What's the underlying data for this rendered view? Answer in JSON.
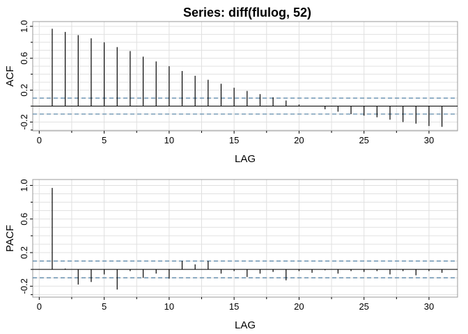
{
  "title": "Series:  diff(flulog, 52)",
  "colors": {
    "spike": "#000000",
    "bound": "#4f7fa3",
    "grid": "#e0e0e0",
    "frame": "#999999"
  },
  "chart_data": [
    {
      "type": "bar",
      "panel": "acf",
      "xlabel": "LAG",
      "ylabel": "ACF",
      "xlim": [
        -0.5,
        32.2
      ],
      "ylim": [
        -0.31,
        1.06
      ],
      "xticks": [
        0,
        5,
        10,
        15,
        20,
        25,
        30
      ],
      "yticks": [
        "-0.2",
        "0.2",
        "0.6",
        "1.0"
      ],
      "grid": true,
      "confidence_bound": 0.1,
      "x": [
        1,
        2,
        3,
        4,
        5,
        6,
        7,
        8,
        9,
        10,
        11,
        12,
        13,
        14,
        15,
        16,
        17,
        18,
        19,
        20,
        21,
        22,
        23,
        24,
        25,
        26,
        27,
        28,
        29,
        30,
        31
      ],
      "values": [
        0.97,
        0.93,
        0.89,
        0.85,
        0.8,
        0.74,
        0.69,
        0.62,
        0.56,
        0.5,
        0.44,
        0.38,
        0.33,
        0.28,
        0.23,
        0.19,
        0.15,
        0.11,
        0.07,
        0.02,
        0.0,
        -0.04,
        -0.07,
        -0.1,
        -0.12,
        -0.14,
        -0.17,
        -0.2,
        -0.22,
        -0.25,
        -0.26
      ]
    },
    {
      "type": "bar",
      "panel": "pacf",
      "xlabel": "LAG",
      "ylabel": "PACF",
      "xlim": [
        -0.5,
        32.2
      ],
      "ylim": [
        -0.33,
        1.07
      ],
      "xticks": [
        0,
        5,
        10,
        15,
        20,
        25,
        30
      ],
      "yticks": [
        "-0.2",
        "0.2",
        "0.6",
        "1.0"
      ],
      "grid": true,
      "confidence_bound": 0.1,
      "x": [
        1,
        2,
        3,
        4,
        5,
        6,
        7,
        8,
        9,
        10,
        11,
        12,
        13,
        14,
        15,
        16,
        17,
        18,
        19,
        20,
        21,
        22,
        23,
        24,
        25,
        26,
        27,
        28,
        29,
        30,
        31
      ],
      "values": [
        0.97,
        0.01,
        -0.18,
        -0.15,
        -0.06,
        -0.24,
        -0.02,
        -0.1,
        -0.05,
        -0.11,
        0.1,
        0.06,
        0.1,
        -0.05,
        -0.02,
        -0.09,
        -0.05,
        -0.03,
        -0.13,
        -0.02,
        -0.04,
        -0.01,
        -0.05,
        -0.02,
        -0.03,
        -0.02,
        -0.06,
        -0.02,
        -0.07,
        -0.02,
        -0.04
      ]
    }
  ]
}
